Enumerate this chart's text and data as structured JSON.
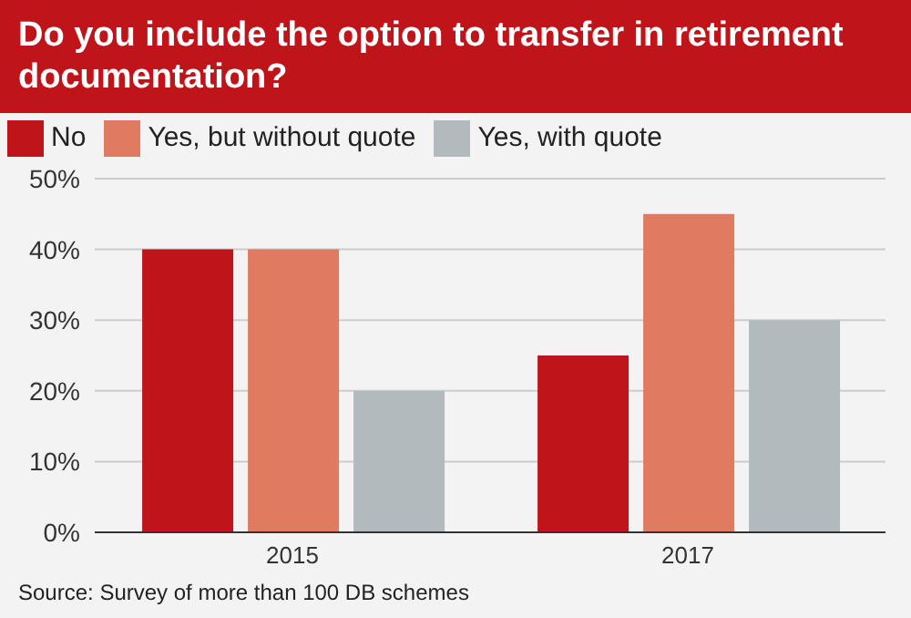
{
  "chart_data": {
    "type": "bar",
    "title": "Do you include the option to transfer in retirement documentation?",
    "categories": [
      "2015",
      "2017"
    ],
    "series": [
      {
        "name": "No",
        "color": "#c0141b",
        "values": [
          40,
          25
        ]
      },
      {
        "name": "Yes, but without quote",
        "color": "#e07b62",
        "values": [
          40,
          45
        ]
      },
      {
        "name": "Yes, with quote",
        "color": "#b2babe",
        "values": [
          20,
          30
        ]
      }
    ],
    "ylim": [
      0,
      50
    ],
    "yticks": [
      {
        "value": 0,
        "label": "0%"
      },
      {
        "value": 10,
        "label": "10%"
      },
      {
        "value": 20,
        "label": "20%"
      },
      {
        "value": 30,
        "label": "30%"
      },
      {
        "value": 40,
        "label": "40%"
      },
      {
        "value": 50,
        "label": "50%"
      }
    ],
    "grid": "y",
    "legend": "top left",
    "annotations": [
      "Source: Survey of more than 100 DB schemes"
    ]
  }
}
